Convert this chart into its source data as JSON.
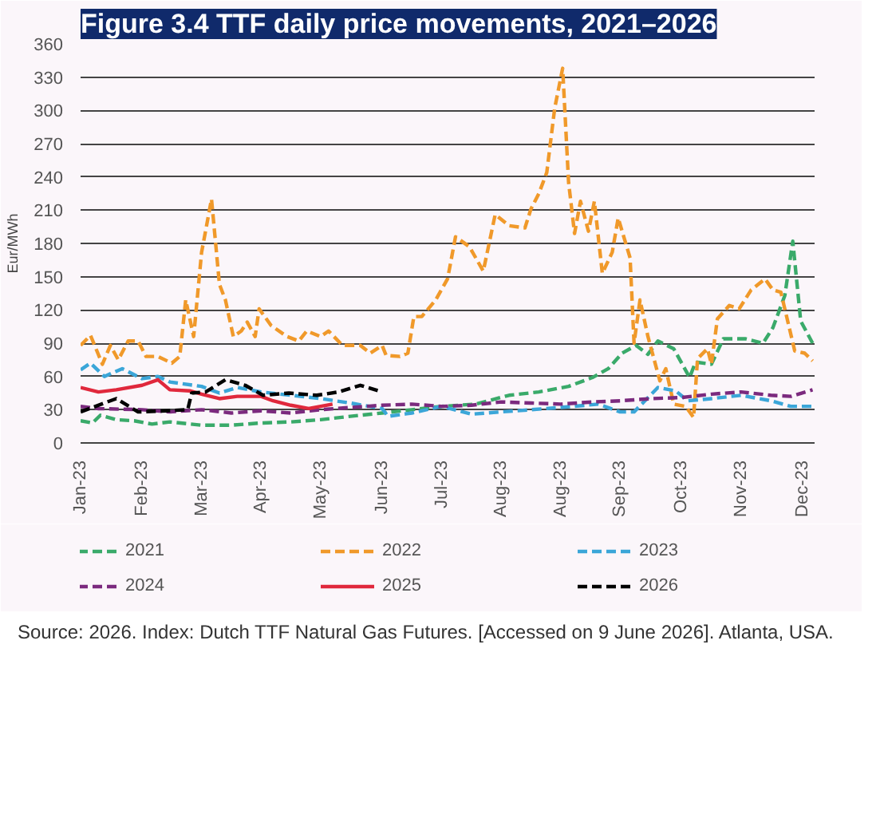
{
  "chart_data": {
    "type": "line",
    "title": "Figure 3.4 TTF daily price movements, 2021–2026",
    "ylabel": "Eur/MWh",
    "xlim": [
      "2023-01-01",
      "2024-01-06"
    ],
    "xticks": [
      {
        "value": "2023-01-01",
        "label": "Jan-23"
      },
      {
        "value": "2023-02-01",
        "label": "Feb-23"
      },
      {
        "value": "2023-03-03",
        "label": "Mar-23"
      },
      {
        "value": "2023-04-02",
        "label": "Apr-23"
      },
      {
        "value": "2023-05-02",
        "label": "May-23"
      },
      {
        "value": "2023-06-02",
        "label": "Jun-23"
      },
      {
        "value": "2023-07-02",
        "label": "Jul-23"
      },
      {
        "value": "2023-08-01",
        "label": "Aug-23"
      },
      {
        "value": "2023-08-31",
        "label": "Aug-23"
      },
      {
        "value": "2023-09-30",
        "label": "Sep-23"
      },
      {
        "value": "2023-10-31",
        "label": "Oct-23"
      },
      {
        "value": "2023-11-30",
        "label": "Nov-23"
      },
      {
        "value": "2023-12-31",
        "label": "Dec-23"
      }
    ],
    "ylim": [
      0,
      360
    ],
    "yticks": [
      0,
      30,
      60,
      90,
      120,
      150,
      180,
      210,
      240,
      270,
      300,
      330,
      360
    ],
    "grid": "y",
    "legend": "bottom",
    "line_style": "dashed",
    "series": [
      {
        "name": "2021",
        "color": "#3aaa6a",
        "x": [
          "2023-01-01",
          "2023-01-07",
          "2023-01-11",
          "2023-01-19",
          "2023-01-28",
          "2023-02-06",
          "2023-02-15",
          "2023-03-03",
          "2023-03-18",
          "2023-04-02",
          "2023-04-17",
          "2023-05-02",
          "2023-05-17",
          "2023-06-02",
          "2023-06-17",
          "2023-07-02",
          "2023-07-19",
          "2023-08-05",
          "2023-08-20",
          "2023-09-04",
          "2023-09-16",
          "2023-09-24",
          "2023-10-01",
          "2023-10-08",
          "2023-10-14",
          "2023-10-19",
          "2023-10-27",
          "2023-11-04",
          "2023-11-07",
          "2023-11-15",
          "2023-11-21",
          "2023-12-02",
          "2023-12-11",
          "2023-12-16",
          "2023-12-22",
          "2023-12-26",
          "2023-12-30",
          "2024-01-05"
        ],
        "values": [
          20,
          18,
          25,
          21,
          20,
          17,
          19,
          16,
          16,
          18,
          19,
          21,
          24,
          27,
          30,
          33,
          35,
          43,
          46,
          51,
          59,
          67,
          81,
          88,
          80,
          92,
          85,
          59,
          73,
          71,
          94,
          94,
          90,
          104,
          133,
          182,
          110,
          90
        ]
      },
      {
        "name": "2022",
        "color": "#f0992a",
        "x": [
          "2023-01-01",
          "2023-01-06",
          "2023-01-12",
          "2023-01-16",
          "2023-01-20",
          "2023-01-25",
          "2023-01-30",
          "2023-02-03",
          "2023-02-09",
          "2023-02-16",
          "2023-02-20",
          "2023-02-23",
          "2023-02-27",
          "2023-03-03",
          "2023-03-08",
          "2023-03-12",
          "2023-03-15",
          "2023-03-19",
          "2023-03-23",
          "2023-03-26",
          "2023-03-30",
          "2023-04-01",
          "2023-04-07",
          "2023-04-15",
          "2023-04-21",
          "2023-04-25",
          "2023-05-02",
          "2023-05-06",
          "2023-05-13",
          "2023-05-22",
          "2023-05-27",
          "2023-06-02",
          "2023-06-04",
          "2023-06-11",
          "2023-06-15",
          "2023-06-18",
          "2023-06-22",
          "2023-06-29",
          "2023-07-05",
          "2023-07-09",
          "2023-07-16",
          "2023-07-23",
          "2023-07-29",
          "2023-08-05",
          "2023-08-13",
          "2023-08-16",
          "2023-08-20",
          "2023-08-24",
          "2023-08-28",
          "2023-09-01",
          "2023-09-04",
          "2023-09-07",
          "2023-09-10",
          "2023-09-14",
          "2023-09-17",
          "2023-09-21",
          "2023-09-26",
          "2023-09-29",
          "2023-10-05",
          "2023-10-07",
          "2023-10-10",
          "2023-10-14",
          "2023-10-20",
          "2023-10-23",
          "2023-10-27",
          "2023-11-02",
          "2023-11-06",
          "2023-11-08",
          "2023-11-13",
          "2023-11-15",
          "2023-11-18",
          "2023-11-24",
          "2023-11-29",
          "2023-12-05",
          "2023-12-12",
          "2023-12-16",
          "2023-12-20",
          "2023-12-27",
          "2024-01-01",
          "2024-01-05"
        ],
        "values": [
          88,
          97,
          71,
          88,
          75,
          92,
          92,
          78,
          78,
          72,
          78,
          129,
          96,
          172,
          220,
          143,
          129,
          96,
          101,
          109,
          96,
          121,
          106,
          96,
          92,
          101,
          96,
          101,
          88,
          88,
          81,
          88,
          79,
          78,
          81,
          114,
          114,
          129,
          148,
          186,
          177,
          155,
          206,
          196,
          194,
          211,
          225,
          244,
          302,
          338,
          235,
          189,
          218,
          191,
          218,
          153,
          172,
          203,
          167,
          90,
          129,
          96,
          56,
          67,
          35,
          33,
          23,
          76,
          85,
          71,
          112,
          124,
          121,
          138,
          148,
          138,
          136,
          83,
          81,
          74
        ]
      },
      {
        "name": "2023",
        "color": "#3ba6d8",
        "x": [
          "2023-01-01",
          "2023-01-06",
          "2023-01-13",
          "2023-01-22",
          "2023-02-01",
          "2023-02-09",
          "2023-02-15",
          "2023-03-03",
          "2023-03-12",
          "2023-03-21",
          "2023-04-02",
          "2023-04-17",
          "2023-05-02",
          "2023-05-17",
          "2023-06-02",
          "2023-06-05",
          "2023-06-17",
          "2023-07-02",
          "2023-07-17",
          "2023-08-01",
          "2023-08-16",
          "2023-08-31",
          "2023-09-19",
          "2023-09-30",
          "2023-10-07",
          "2023-10-19",
          "2023-10-28",
          "2023-11-03",
          "2023-11-15",
          "2023-11-30",
          "2023-12-15",
          "2023-12-25",
          "2024-01-05"
        ],
        "values": [
          66,
          72,
          60,
          67,
          58,
          60,
          55,
          51,
          45,
          50,
          46,
          43,
          40,
          36,
          31,
          24,
          27,
          33,
          26,
          28,
          30,
          32,
          35,
          28,
          28,
          50,
          47,
          38,
          40,
          43,
          38,
          33,
          33
        ]
      },
      {
        "name": "2024",
        "color": "#7b2a7e",
        "x": [
          "2023-01-01",
          "2023-01-10",
          "2023-02-01",
          "2023-02-15",
          "2023-03-03",
          "2023-03-18",
          "2023-04-02",
          "2023-04-17",
          "2023-05-02",
          "2023-05-17",
          "2023-06-02",
          "2023-06-17",
          "2023-07-02",
          "2023-07-17",
          "2023-08-01",
          "2023-08-16",
          "2023-08-31",
          "2023-09-16",
          "2023-09-30",
          "2023-10-16",
          "2023-10-31",
          "2023-11-15",
          "2023-11-30",
          "2023-12-15",
          "2023-12-25",
          "2024-01-05"
        ],
        "values": [
          33,
          31,
          30,
          28,
          30,
          27,
          29,
          27,
          30,
          32,
          34,
          35,
          33,
          34,
          37,
          36,
          35,
          37,
          38,
          40,
          41,
          44,
          46,
          43,
          42,
          48
        ]
      },
      {
        "name": "2025",
        "color": "#e0283c",
        "line_style": "solid",
        "x": [
          "2023-01-01",
          "2023-01-10",
          "2023-01-19",
          "2023-02-01",
          "2023-02-09",
          "2023-02-15",
          "2023-02-25",
          "2023-03-03",
          "2023-03-12",
          "2023-03-21",
          "2023-04-02",
          "2023-04-08",
          "2023-04-17",
          "2023-04-26",
          "2023-05-08"
        ],
        "values": [
          50,
          46,
          48,
          52,
          57,
          48,
          47,
          44,
          40,
          42,
          42,
          38,
          34,
          31,
          35
        ]
      },
      {
        "name": "2026",
        "color": "#000000",
        "x": [
          "2023-01-01",
          "2023-01-19",
          "2023-01-30",
          "2023-02-13",
          "2023-02-24",
          "2023-02-26",
          "2023-03-05",
          "2023-03-15",
          "2023-03-25",
          "2023-04-03",
          "2023-04-16",
          "2023-04-30",
          "2023-05-11",
          "2023-05-22",
          "2023-06-02"
        ],
        "values": [
          28,
          40,
          28,
          29,
          30,
          45,
          46,
          57,
          52,
          43,
          45,
          43,
          46,
          52,
          46
        ]
      }
    ],
    "annotations": [
      "Source: 2026. Index: Dutch TTF Natural Gas Futures. [Accessed on 9 June 2026]. Atlanta, USA."
    ]
  }
}
